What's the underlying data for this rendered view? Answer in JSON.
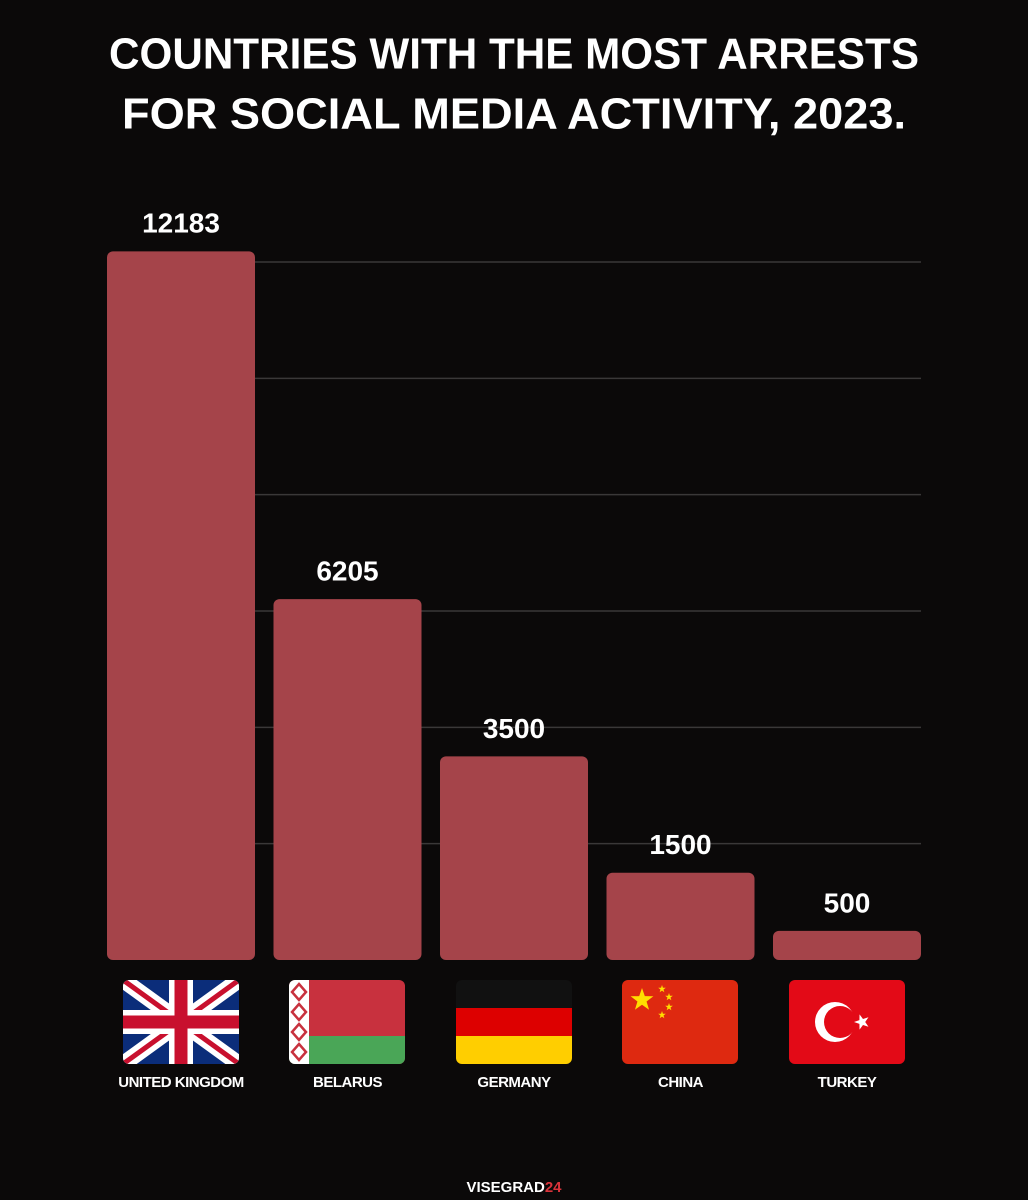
{
  "chart_data": {
    "type": "bar",
    "title": [
      "COUNTRIES WITH THE MOST ARRESTS",
      "FOR SOCIAL MEDIA ACTIVITY, 2023."
    ],
    "categories": [
      "UNITED KINGDOM",
      "BELARUS",
      "GERMANY",
      "CHINA",
      "TURKEY"
    ],
    "values": [
      12183,
      6205,
      3500,
      1500,
      500
    ],
    "color": "#a5444a",
    "ylim": [
      0,
      12000
    ],
    "yticks": [
      2000,
      4000,
      6000,
      8000,
      10000,
      12000
    ],
    "grid": true,
    "source": [
      "VISEGRAD",
      "24"
    ]
  }
}
